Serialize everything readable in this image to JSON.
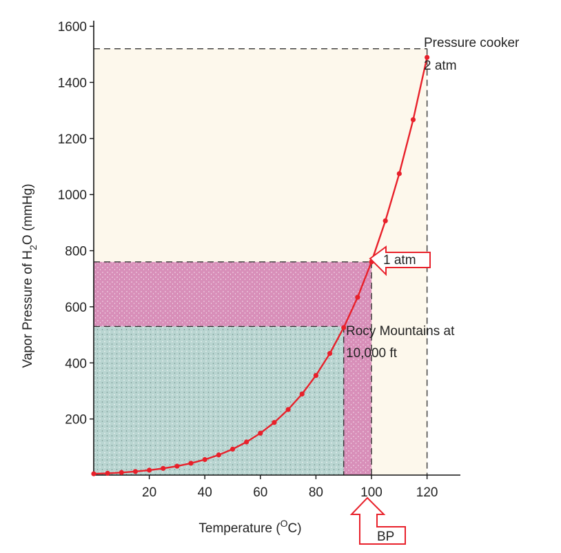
{
  "chart_data": {
    "type": "line",
    "title": "",
    "xlabel": "Temperature (",
    "xlabel_sup": "O",
    "xlabel_end": "C)",
    "ylabel_pre": "Vapor Pressure of H",
    "ylabel_sub": "2",
    "ylabel_post": "O (mmHg)",
    "xlim": [
      0,
      132
    ],
    "ylim": [
      0,
      1620
    ],
    "x_ticks": [
      20,
      40,
      60,
      80,
      100,
      120
    ],
    "y_ticks": [
      200,
      400,
      600,
      800,
      1000,
      1200,
      1400,
      1600
    ],
    "grid": false,
    "series": [
      {
        "color": "#e8202a",
        "x": [
          0,
          5,
          10,
          15,
          20,
          25,
          30,
          35,
          40,
          45,
          50,
          55,
          60,
          65,
          70,
          75,
          80,
          85,
          90,
          95,
          100,
          105,
          110,
          115,
          120
        ],
        "y": [
          4.6,
          6.5,
          9.2,
          12.8,
          17.5,
          23.8,
          31.8,
          42.2,
          55.3,
          71.9,
          92.5,
          118.0,
          149.4,
          187.5,
          233.7,
          289.1,
          355.1,
          433.6,
          525.8,
          633.9,
          760.0,
          906.4,
          1074.6,
          1267.0,
          1489.1
        ]
      }
    ],
    "annotations": [
      {
        "id": "pressure-cooker",
        "lines": [
          "Pressure cooker",
          "2 atm"
        ],
        "x": 120,
        "y": 1520
      },
      {
        "id": "one-atm",
        "text": "1 atm",
        "x": 100,
        "y": 760
      },
      {
        "id": "rocky",
        "lines": [
          "Rocy Mountains at",
          "10,000 ft"
        ],
        "x": 90,
        "y": 530
      },
      {
        "id": "bp",
        "text": "BP",
        "x": 100
      }
    ],
    "regions": [
      {
        "id": "pressure-cooker-region",
        "x_max": 120,
        "y_max": 1520,
        "color": "#fdf8ec"
      },
      {
        "id": "one-atm-region",
        "x_max": 100,
        "y_max": 760,
        "color": "#d98fb8"
      },
      {
        "id": "rocky-region",
        "x_max": 90,
        "y_max": 530,
        "color": "#b8d4d0"
      }
    ]
  }
}
